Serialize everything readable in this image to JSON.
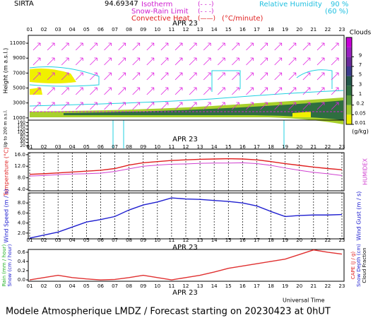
{
  "header": {
    "station": "SIRTA",
    "coord": "94.69347",
    "isotherm": "Isotherm",
    "isotherm_mark": "(- - -)",
    "snow_rain": "Snow-Rain Limit",
    "snow_rain_mark": "(- - -)",
    "convective": "Convective Heat.",
    "convective_mark": "(——)",
    "convective_unit": "(°C/minute)",
    "rh_label": "Relative Humidity",
    "rh_90": "90 %",
    "rh_60": "(60 %)"
  },
  "time_axis": {
    "hours": [
      "01",
      "02",
      "03",
      "04",
      "05",
      "06",
      "07",
      "08",
      "09",
      "10",
      "11",
      "12",
      "13",
      "14",
      "15",
      "16",
      "17",
      "18",
      "19",
      "20",
      "21",
      "22",
      "23"
    ],
    "date": "APR 23",
    "label": "Universal Time"
  },
  "footer": "Modele Atmospherique LMDZ / Forecast starting on 20230423 at 0hUT",
  "chart_data": [
    {
      "type": "contour",
      "y_label": "Height (m a.s.l.)",
      "y_label_low": "Up to 200 m a.s.l.",
      "ylim": [
        700,
        12050
      ],
      "yticks": [
        1000,
        3000,
        5000,
        7000,
        9000,
        11000
      ],
      "ylim_low": [
        0,
        170
      ],
      "yticks_low": [
        20,
        40,
        60,
        80,
        100,
        120,
        140,
        160
      ],
      "colorbar": {
        "title": "Clouds",
        "unit": "(g/kg)",
        "ticks": [
          0.01,
          0.05,
          0.2,
          1,
          3,
          5,
          7,
          9
        ],
        "colors": [
          "#f0f000",
          "#a8d02c",
          "#5a9c3a",
          "#2e6e40",
          "#24584a",
          "#3c3c8c",
          "#6a2a9a",
          "#9a20c0",
          "#c800d8"
        ]
      }
    },
    {
      "type": "line",
      "y_label": "Temperature (°C)",
      "y2_label": "HUMIDEX",
      "ylim": [
        3.5,
        16.7
      ],
      "yticks": [
        {
          "value": 4,
          "label": "4.0"
        },
        {
          "value": 8,
          "label": "8.0"
        },
        {
          "value": 12,
          "label": "12.0"
        },
        {
          "value": 16,
          "label": "16.0"
        }
      ],
      "series": [
        {
          "color": "#e02020",
          "values": [
            9.2,
            9.4,
            9.7,
            10.0,
            10.3,
            10.6,
            11.2,
            12.4,
            13.2,
            13.6,
            14.0,
            14.2,
            14.4,
            14.5,
            14.6,
            14.5,
            14.2,
            13.6,
            12.9,
            12.3,
            11.7,
            11.2,
            10.8
          ]
        },
        {
          "color": "#d040d0",
          "values": [
            8.6,
            8.8,
            9.1,
            9.3,
            9.4,
            9.6,
            10.2,
            11.1,
            12.0,
            12.4,
            12.7,
            12.8,
            13.0,
            13.1,
            13.1,
            13.2,
            12.9,
            12.3,
            11.4,
            10.6,
            9.9,
            9.4,
            8.8
          ]
        }
      ]
    },
    {
      "type": "line",
      "y_label": "Wind Speed (m / s)",
      "y2_label": "Wind Gust (m / s)",
      "ylim": [
        0.85,
        10
      ],
      "yticks": [
        {
          "value": 2,
          "label": "2.0"
        },
        {
          "value": 4,
          "label": "4.0"
        },
        {
          "value": 6,
          "label": "6.0"
        },
        {
          "value": 8,
          "label": "8.0"
        }
      ],
      "series": [
        {
          "color": "#2020d0",
          "values": [
            1.0,
            1.6,
            2.2,
            3.2,
            4.2,
            4.7,
            5.3,
            6.6,
            7.6,
            8.2,
            9.0,
            8.8,
            8.7,
            8.5,
            8.3,
            8.0,
            7.4,
            6.3,
            5.3,
            5.5,
            5.6,
            5.6,
            5.7
          ]
        }
      ]
    },
    {
      "type": "line",
      "y_labels": [
        "Rain (mm / hour)",
        "Snow (cm / hour)"
      ],
      "y2_labels": [
        "CAPE (J / g)",
        "Snow Depth (cm)",
        "Cloud Fraction"
      ],
      "ylim": [
        -0.03,
        0.66
      ],
      "yticks": [
        {
          "value": 0,
          "label": "0.0"
        },
        {
          "value": 0.2,
          "label": "0.2"
        },
        {
          "value": 0.4,
          "label": "0.4"
        },
        {
          "value": 0.6,
          "label": "0.6"
        }
      ],
      "series": [
        {
          "color": "#e03030",
          "values": [
            0.0,
            0.05,
            0.1,
            0.05,
            0.02,
            0.0,
            0.01,
            0.05,
            0.1,
            0.05,
            0.0,
            0.05,
            0.1,
            0.17,
            0.25,
            0.3,
            0.35,
            0.4,
            0.45,
            0.55,
            0.65,
            0.6,
            0.56
          ]
        }
      ]
    }
  ]
}
